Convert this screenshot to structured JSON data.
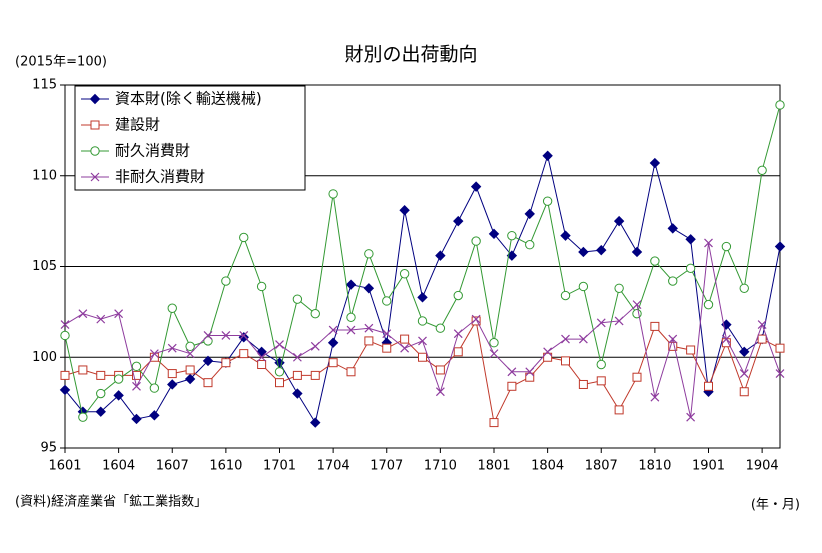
{
  "chart_data": {
    "type": "line",
    "title": "財別の出荷動向",
    "y_unit_label": "(2015年=100)",
    "source": "(資料)経済産業省「鉱工業指数」",
    "x_label": "(年・月)",
    "categories": [
      "1601",
      null,
      null,
      "1604",
      null,
      null,
      "1607",
      null,
      null,
      "1610",
      null,
      null,
      "1701",
      null,
      null,
      "1704",
      null,
      null,
      "1707",
      null,
      null,
      "1710",
      null,
      null,
      "1801",
      null,
      null,
      "1804",
      null,
      null,
      "1807",
      null,
      null,
      "1810",
      null,
      null,
      "1901",
      null,
      null,
      "1904",
      null
    ],
    "ylim": [
      95,
      115
    ],
    "yticks": [
      95,
      100,
      105,
      110,
      115
    ],
    "grid": true,
    "legend": "upper left",
    "series": [
      {
        "name": "資本財(除く輸送機械)",
        "color": "#000080",
        "marker": "diamond",
        "values": [
          98.2,
          97.0,
          97.0,
          97.9,
          96.6,
          96.8,
          98.5,
          98.8,
          99.8,
          99.7,
          101.1,
          100.3,
          99.7,
          98.0,
          96.4,
          100.8,
          104.0,
          103.8,
          100.8,
          108.1,
          103.3,
          105.6,
          107.5,
          109.4,
          106.8,
          105.6,
          107.9,
          111.1,
          106.7,
          105.8,
          105.9,
          107.5,
          105.8,
          110.7,
          107.1,
          106.5,
          98.1,
          101.8,
          100.3,
          101.0,
          106.1
        ]
      },
      {
        "name": "建設財",
        "color": "#c0392b",
        "marker": "square",
        "values": [
          99.0,
          99.3,
          99.0,
          99.0,
          99.0,
          100.0,
          99.1,
          99.3,
          98.6,
          99.7,
          100.2,
          99.6,
          98.6,
          99.0,
          99.0,
          99.7,
          99.2,
          100.9,
          100.5,
          101.0,
          100.0,
          99.3,
          100.3,
          102.0,
          96.4,
          98.4,
          98.9,
          100.0,
          99.8,
          98.5,
          98.7,
          97.1,
          98.9,
          101.7,
          100.6,
          100.4,
          98.4,
          100.8,
          98.1,
          101.0,
          100.5
        ]
      },
      {
        "name": "耐久消費財",
        "color": "#339933",
        "marker": "circle",
        "values": [
          101.2,
          96.7,
          98.0,
          98.8,
          99.5,
          98.3,
          102.7,
          100.6,
          100.9,
          104.2,
          106.6,
          103.9,
          99.2,
          103.2,
          102.4,
          109.0,
          102.2,
          105.7,
          103.1,
          104.6,
          102.0,
          101.6,
          103.4,
          106.4,
          100.8,
          106.7,
          106.2,
          108.6,
          103.4,
          103.9,
          99.6,
          103.8,
          102.4,
          105.3,
          104.2,
          104.9,
          102.9,
          106.1,
          103.8,
          110.3,
          113.9
        ]
      },
      {
        "name": "非耐久消費財",
        "color": "#8e3c9e",
        "marker": "x",
        "values": [
          101.8,
          102.4,
          102.1,
          102.4,
          98.4,
          100.2,
          100.5,
          100.2,
          101.2,
          101.2,
          101.2,
          100.0,
          100.7,
          100.0,
          100.6,
          101.5,
          101.5,
          101.6,
          101.3,
          100.5,
          100.9,
          98.1,
          101.3,
          102.1,
          100.2,
          99.2,
          99.2,
          100.3,
          101.0,
          101.0,
          101.9,
          102.0,
          102.9,
          97.8,
          101.0,
          96.7,
          106.3,
          101.0,
          99.1,
          101.8,
          99.1
        ]
      }
    ]
  }
}
